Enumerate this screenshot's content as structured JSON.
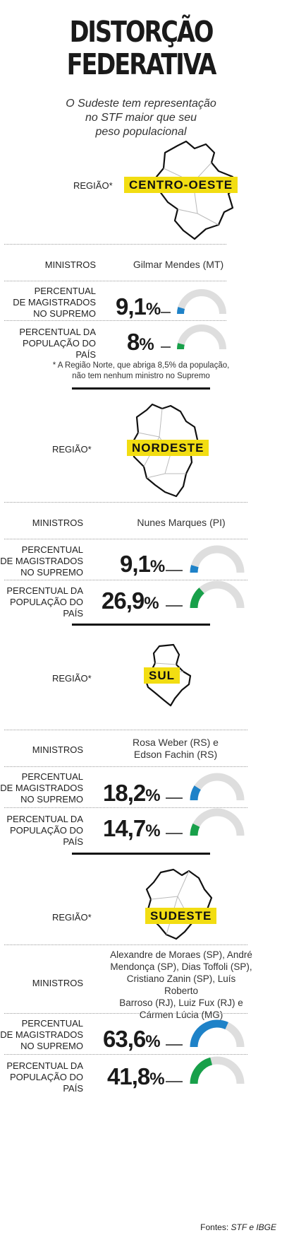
{
  "header": {
    "title_line1": "DISTORÇÃO",
    "title_line2": "FEDERATIVA",
    "subtitle_line1": "O Sudeste tem representação",
    "subtitle_line2": "no STF maior que seu",
    "subtitle_line3": "peso populacional"
  },
  "labels": {
    "region": "REGIÃO*",
    "ministers": "MINISTROS",
    "magistrates_l1": "PERCENTUAL",
    "magistrates_l2": "DE MAGISTRADOS",
    "magistrates_l3": "NO SUPREMO",
    "population_l1": "PERCENTUAL DA",
    "population_l2": "POPULAÇÃO DO PAÍS"
  },
  "note": {
    "line1": "* A Região Norte, que abriga 8,5% da população,",
    "line2": "não tem nenhum ministro no Supremo"
  },
  "source": {
    "prefix": "Fontes: ",
    "names": "STF e IBGE"
  },
  "colors": {
    "badge": "#f2dd12",
    "magistrates": "#1e82c8",
    "population": "#18a04a",
    "track": "#dedede"
  },
  "chart_data": {
    "type": "gauge",
    "scale_max": 100,
    "regions": [
      {
        "name": "CENTRO-OESTE",
        "ministers": [
          "Gilmar Mendes (MT)"
        ],
        "magistrates_pct": 9.1,
        "magistrates_label": "9,1",
        "population_pct": 8,
        "population_label": "8",
        "unit": "%"
      },
      {
        "name": "NORDESTE",
        "ministers": [
          "Nunes Marques (PI)"
        ],
        "magistrates_pct": 9.1,
        "magistrates_label": "9,1",
        "population_pct": 26.9,
        "population_label": "26,9",
        "unit": "%"
      },
      {
        "name": "SUL",
        "ministers": [
          "Rosa Weber (RS) e",
          "Edson Fachin (RS)"
        ],
        "magistrates_pct": 18.2,
        "magistrates_label": "18,2",
        "population_pct": 14.7,
        "population_label": "14,7",
        "unit": "%"
      },
      {
        "name": "SUDESTE",
        "ministers": [
          "Alexandre de Moraes (SP), André",
          "Mendonça (SP), Dias Toffoli (SP),",
          "Cristiano Zanin (SP), Luís Roberto",
          "Barroso (RJ), Luiz Fux (RJ) e",
          "Cármen Lúcia (MG)"
        ],
        "magistrates_pct": 63.6,
        "magistrates_label": "63,6",
        "population_pct": 41.8,
        "population_label": "41,8",
        "unit": "%"
      }
    ]
  }
}
